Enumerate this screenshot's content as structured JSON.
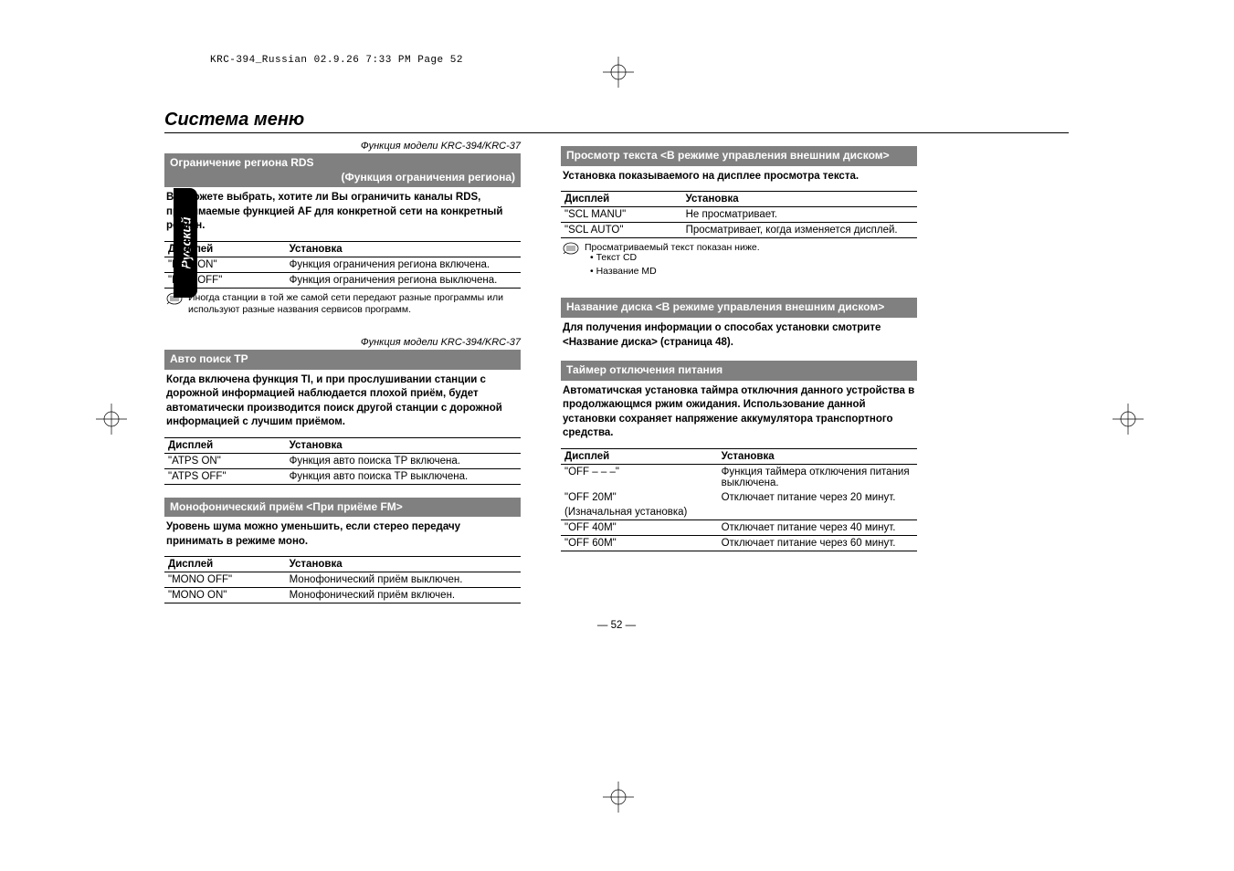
{
  "print_header": "KRC-394_Russian  02.9.26  7:33 PM  Page 52",
  "side_tab": "Русский",
  "main_title": "Система меню",
  "page_number": "— 52 —",
  "left": {
    "model_note": "Функция модели KRC-394/KRC-37",
    "sec1": {
      "title": "Ограничение региона RDS",
      "subtitle": "(Функция ограничения региона)",
      "body": "Вы можете выбрать, хотите ли Вы ограничить каналы RDS, принимаемые функцией AF для конкретной сети на конкретный регион.",
      "th1": "Дисплей",
      "th2": "Установка",
      "rows": [
        {
          "d": "\"REG ON\"",
          "s": "Функция ограничения региона включена."
        },
        {
          "d": "\"REG OFF\"",
          "s": "Функция ограничения региона выключена."
        }
      ],
      "note": "Иногда станции в той же самой сети передают разные программы или используют разные названия сервисов программ."
    },
    "sec2": {
      "model_note": "Функция модели KRC-394/KRC-37",
      "title": "Авто поиск TP",
      "body": "Когда включена функция TI, и при прослушивании станции с дорожной информацией наблюдается плохой приём, будет автоматически производится поиск другой станции с дорожной информацией с лучшим приёмом.",
      "th1": "Дисплей",
      "th2": "Установка",
      "rows": [
        {
          "d": "\"ATPS ON\"",
          "s": "Функция авто поиска TP включена."
        },
        {
          "d": "\"ATPS OFF\"",
          "s": "Функция авто поиска TP выключена."
        }
      ]
    },
    "sec3": {
      "title": "Монофонический приём <При приёме FM>",
      "body": "Уровень шума можно уменьшить, если стерео передачу принимать в режиме моно.",
      "th1": "Дисплей",
      "th2": "Установка",
      "rows": [
        {
          "d": "\"MONO OFF\"",
          "s": "Монофонический приём выключен."
        },
        {
          "d": "\"MONO ON\"",
          "s": "Монофонический приём включен."
        }
      ]
    }
  },
  "right": {
    "sec1": {
      "title": "Просмотр текста <В режиме управления внешним диском>",
      "body": "Установка показываемого на дисплее просмотра текста.",
      "th1": "Дисплей",
      "th2": "Установка",
      "rows": [
        {
          "d": "\"SCL MANU\"",
          "s": "Не просматривает."
        },
        {
          "d": "\"SCL AUTO\"",
          "s": "Просматривает, когда изменяется дисплей."
        }
      ],
      "note": "Просматриваемый текст показан ниже.",
      "bullets": [
        "• Текст CD",
        "• Название MD"
      ]
    },
    "sec2": {
      "title": "Название диска <В режиме управления внешним диском>",
      "body": "Для получения информации о способах установки смотрите <Название диска> (страница 48)."
    },
    "sec3": {
      "title": "Таймер отключения питания",
      "body": "Автоматичская установка таймра отключния данного устройства в продолжающмся ржим ожидания. Использование данной установки сохраняет напряжение аккумулятора транспортного средства.",
      "th1": "Дисплей",
      "th2": "Установка",
      "rows": [
        {
          "d": "\"OFF – – –\"",
          "s": "Функция таймера отключения питания выключена.",
          "nb": true
        },
        {
          "d": "\"OFF 20M\"",
          "s": "Отключает питание через 20 минут.",
          "nb": true
        },
        {
          "d": "(Изначальная установка)",
          "s": "",
          "span": true
        },
        {
          "d": "\"OFF 40M\"",
          "s": "Отключает питание через 40 минут."
        },
        {
          "d": "\"OFF 60M\"",
          "s": "Отключает питание через 60 минут."
        }
      ]
    }
  }
}
